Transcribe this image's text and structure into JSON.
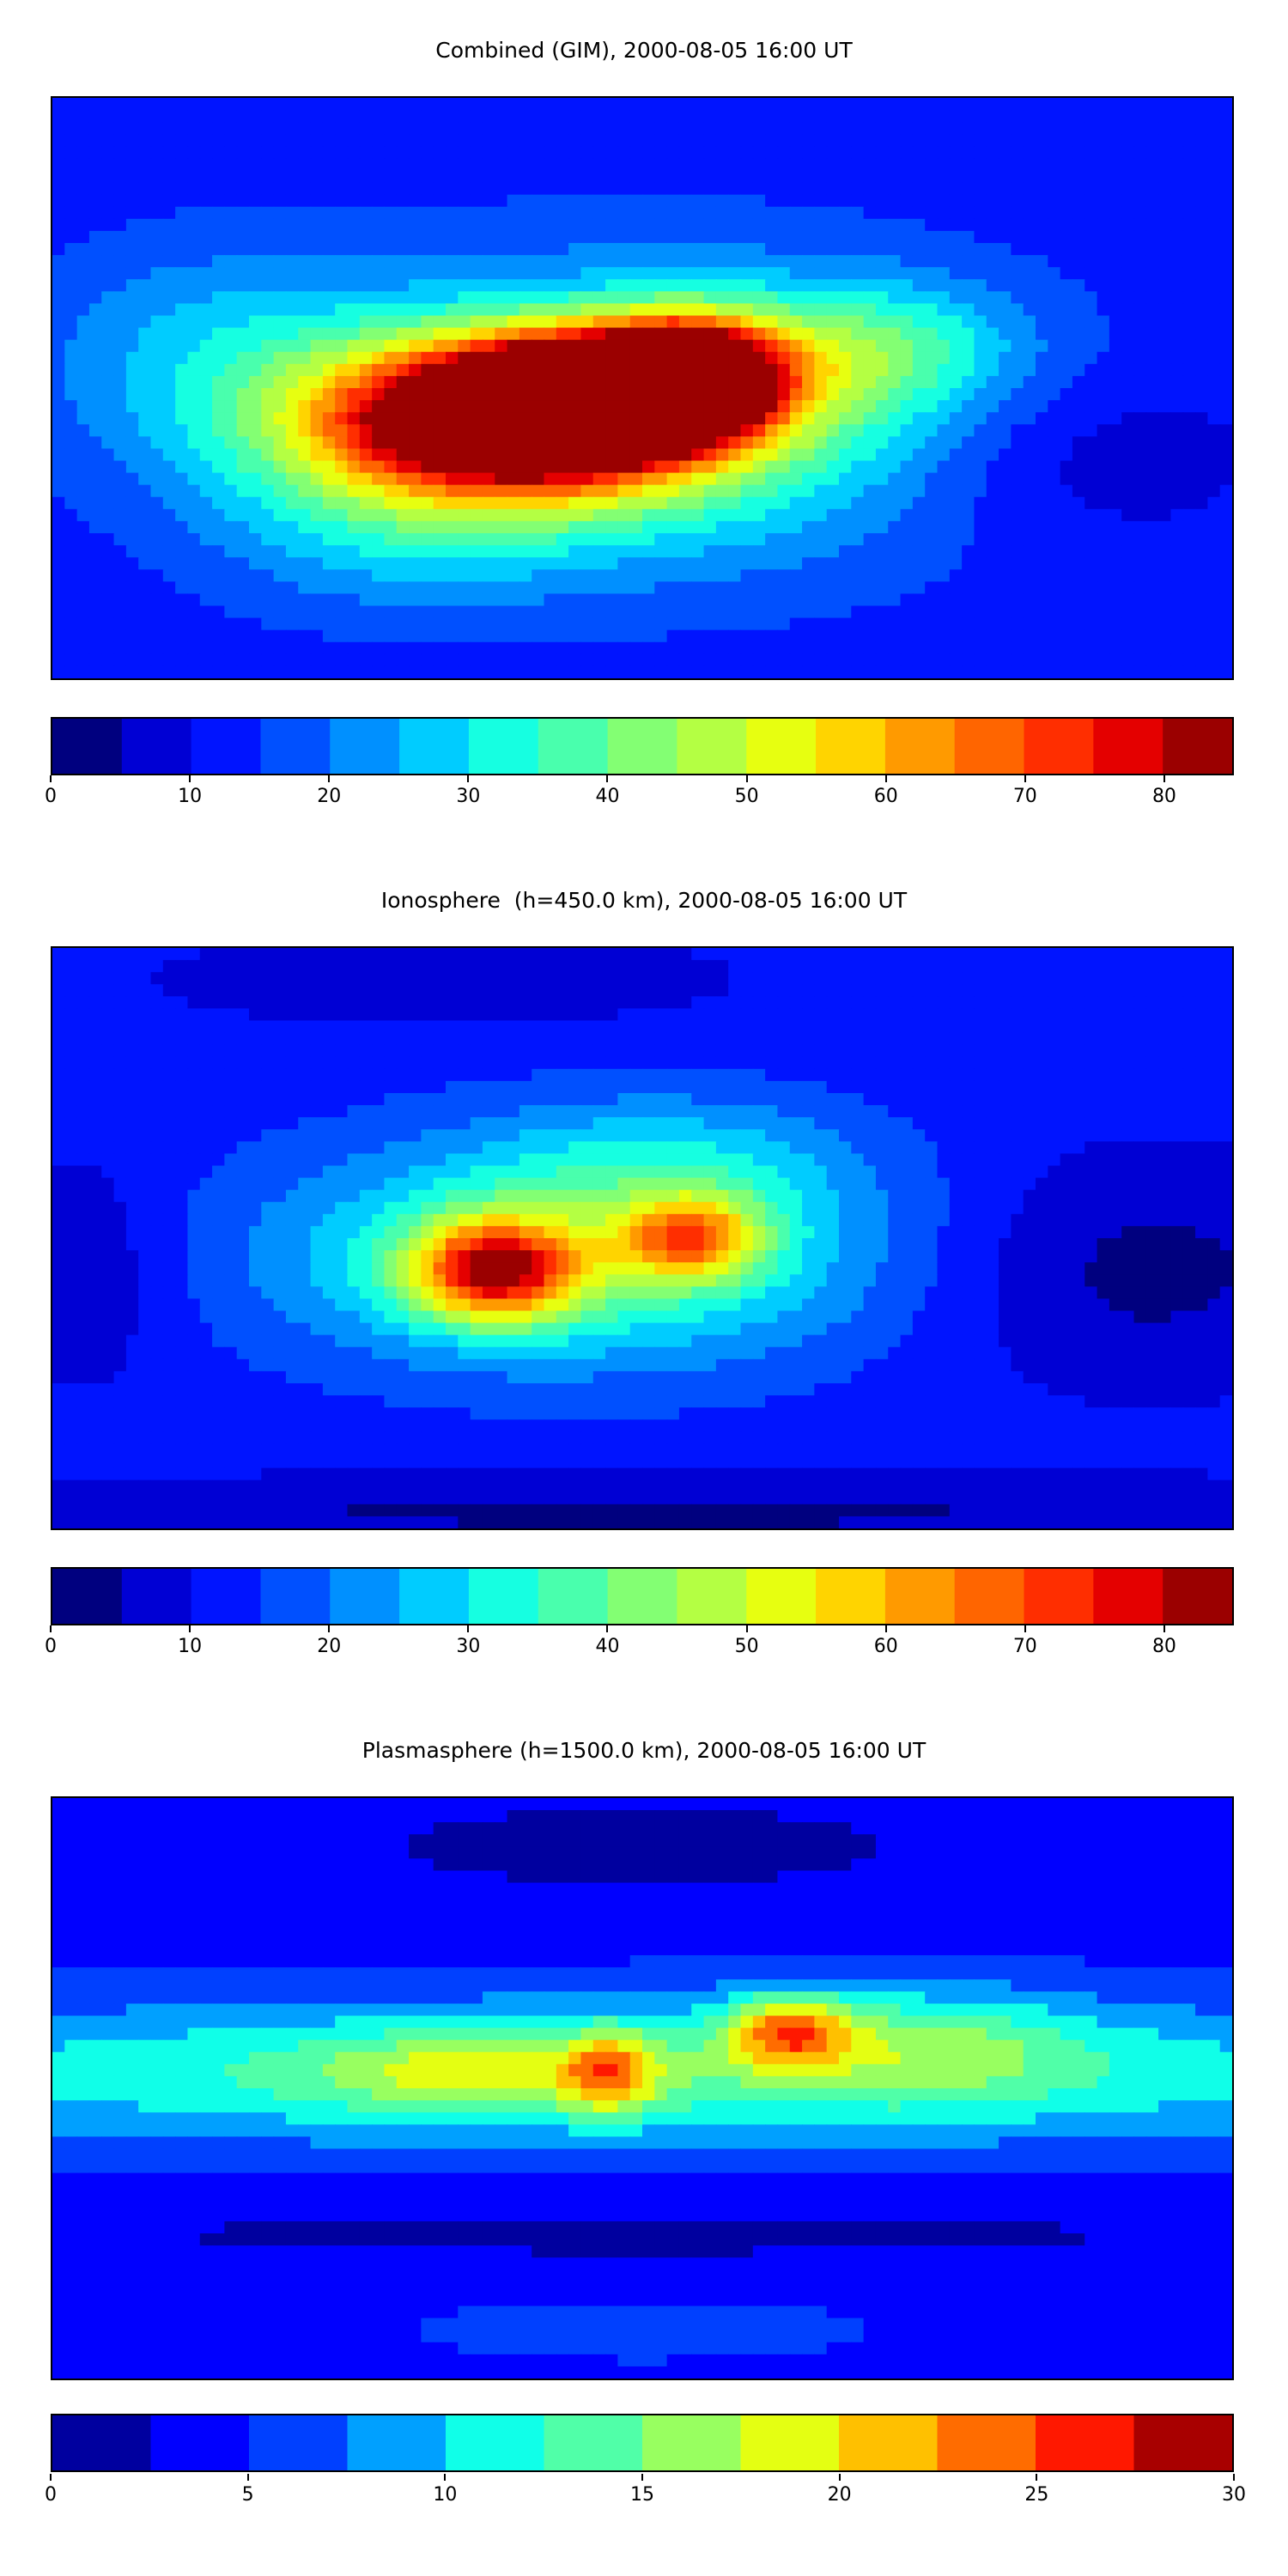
{
  "panels": [
    {
      "title": "Combined (GIM), 2000-08-05 16:00 UT",
      "colorbar": {
        "min": 0,
        "max": 85,
        "step": 5,
        "ticks": [
          0,
          10,
          20,
          30,
          40,
          50,
          60,
          70,
          80
        ],
        "colors": [
          "#00007f",
          "#0000d4",
          "#0014ff",
          "#0050ff",
          "#0090ff",
          "#00ccff",
          "#16ffe1",
          "#49ffad",
          "#83ff73",
          "#b4ff43",
          "#e7ff10",
          "#ffd400",
          "#ff9a00",
          "#ff6500",
          "#ff2e00",
          "#e40000",
          "#9b0000"
        ]
      }
    },
    {
      "title": "Ionosphere  (h=450.0 km), 2000-08-05 16:00 UT",
      "colorbar": {
        "min": 0,
        "max": 85,
        "step": 5,
        "ticks": [
          0,
          10,
          20,
          30,
          40,
          50,
          60,
          70,
          80
        ],
        "colors": [
          "#00007f",
          "#0000d4",
          "#0014ff",
          "#0050ff",
          "#0090ff",
          "#00ccff",
          "#16ffe1",
          "#49ffad",
          "#83ff73",
          "#b4ff43",
          "#e7ff10",
          "#ffd400",
          "#ff9a00",
          "#ff6500",
          "#ff2e00",
          "#e40000",
          "#9b0000"
        ]
      }
    },
    {
      "title": "Plasmasphere (h=1500.0 km), 2000-08-05 16:00 UT",
      "colorbar": {
        "min": 0,
        "max": 30,
        "step": 2.5,
        "ticks": [
          0,
          5,
          10,
          15,
          20,
          25,
          30
        ],
        "colors": [
          "#00009f",
          "#0000ff",
          "#0040ff",
          "#00a0ff",
          "#10ffe8",
          "#50ffa8",
          "#98ff60",
          "#e4ff12",
          "#ffc000",
          "#ff6c00",
          "#ff1800",
          "#a80000"
        ]
      }
    }
  ],
  "chart_data": [
    {
      "type": "heatmap",
      "title": "Combined (GIM), 2000-08-05 16:00 UT",
      "colorbar_range": [
        0,
        85
      ],
      "colorbar_ticks": [
        0,
        10,
        20,
        30,
        40,
        50,
        60,
        70,
        80
      ],
      "xlim": [
        -180,
        180
      ],
      "ylim": [
        -90,
        90
      ],
      "background_value": 12,
      "features": [
        {
          "lon": -40,
          "lat": -10,
          "amp": 75,
          "sx": 42,
          "sy": 16
        },
        {
          "lon": -10,
          "lat": 0,
          "amp": 60,
          "sx": 30,
          "sy": 12
        },
        {
          "lon": 15,
          "lat": 5,
          "amp": 50,
          "sx": 18,
          "sy": 12
        },
        {
          "lon": 0,
          "lat": -8,
          "amp": 28,
          "sx": 75,
          "sy": 32
        },
        {
          "lon": 70,
          "lat": 12,
          "amp": 18,
          "sx": 30,
          "sy": 14
        },
        {
          "lon": -75,
          "lat": -40,
          "amp": 12,
          "sx": 40,
          "sy": 20
        },
        {
          "lon": -130,
          "lat": 10,
          "amp": 12,
          "sx": 40,
          "sy": 25
        },
        {
          "lon": 130,
          "lat": -20,
          "amp": -8,
          "sx": 40,
          "sy": 20
        }
      ]
    },
    {
      "type": "heatmap",
      "title": "Ionosphere  (h=450.0 km), 2000-08-05 16:00 UT",
      "colorbar_range": [
        0,
        85
      ],
      "colorbar_ticks": [
        0,
        10,
        20,
        30,
        40,
        50,
        60,
        70,
        80
      ],
      "xlim": [
        -180,
        180
      ],
      "ylim": [
        -90,
        90
      ],
      "background_value": 12,
      "features": [
        {
          "lon": -45,
          "lat": -10,
          "amp": 50,
          "sx": 18,
          "sy": 11
        },
        {
          "lon": 15,
          "lat": 0,
          "amp": 36,
          "sx": 15,
          "sy": 9
        },
        {
          "lon": -20,
          "lat": -5,
          "amp": 28,
          "sx": 65,
          "sy": 24
        },
        {
          "lon": 10,
          "lat": 25,
          "amp": 10,
          "sx": 40,
          "sy": 15
        },
        {
          "lon": 150,
          "lat": -10,
          "amp": -9,
          "sx": 45,
          "sy": 25
        },
        {
          "lon": -170,
          "lat": -10,
          "amp": -7,
          "sx": 20,
          "sy": 25
        },
        {
          "lon": -60,
          "lat": 80,
          "amp": -6,
          "sx": 60,
          "sy": 10
        },
        {
          "lon": 0,
          "lat": -85,
          "amp": -8,
          "sx": 180,
          "sy": 8
        }
      ]
    },
    {
      "type": "heatmap",
      "title": "Plasmasphere (h=1500.0 km), 2000-08-05 16:00 UT",
      "colorbar_range": [
        0,
        30
      ],
      "colorbar_ticks": [
        0,
        5,
        10,
        15,
        20,
        25,
        30
      ],
      "xlim": [
        -180,
        180
      ],
      "ylim": [
        -90,
        90
      ],
      "background_value": 4,
      "features": [
        {
          "lon": 0,
          "lat": 5,
          "amp": 10,
          "sx": 200,
          "sy": 16
        },
        {
          "lon": 45,
          "lat": 18,
          "amp": 13,
          "sx": 14,
          "sy": 8
        },
        {
          "lon": -10,
          "lat": 5,
          "amp": 10,
          "sx": 10,
          "sy": 9
        },
        {
          "lon": -55,
          "lat": 5,
          "amp": 6,
          "sx": 30,
          "sy": 8
        },
        {
          "lon": 90,
          "lat": 15,
          "amp": 5,
          "sx": 30,
          "sy": 12
        },
        {
          "lon": 0,
          "lat": 75,
          "amp": -3,
          "sx": 60,
          "sy": 10
        },
        {
          "lon": 0,
          "lat": -45,
          "amp": -2,
          "sx": 200,
          "sy": 8
        },
        {
          "lon": 0,
          "lat": -75,
          "amp": 2,
          "sx": 60,
          "sy": 8
        }
      ]
    }
  ]
}
